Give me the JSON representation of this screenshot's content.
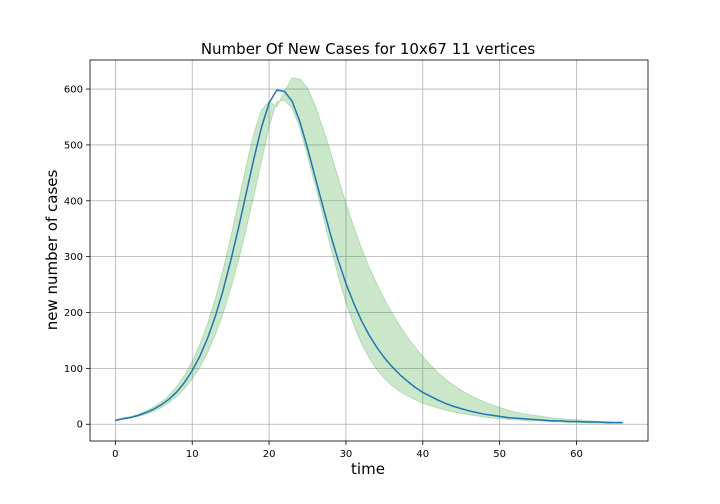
{
  "chart_data": {
    "type": "line",
    "title": "Number Of New Cases for 10x67 11 vertices",
    "xlabel": "time",
    "ylabel": "new number of cases",
    "xlim": [
      -3.3,
      69.3
    ],
    "ylim": [
      -30,
      652
    ],
    "xticks": [
      0,
      10,
      20,
      30,
      40,
      50,
      60
    ],
    "yticks": [
      0,
      100,
      200,
      300,
      400,
      500,
      600
    ],
    "grid": true,
    "colors": {
      "line": "#1f77b4",
      "band": "#2ca02c"
    },
    "series": [
      {
        "x": [
          0,
          1,
          2,
          3,
          4,
          5,
          6,
          7,
          8,
          9,
          10,
          11,
          12,
          13,
          14,
          15,
          16,
          17,
          18,
          19,
          20,
          21,
          22,
          23,
          24,
          25,
          26,
          27,
          28,
          29,
          30,
          31,
          32,
          33,
          34,
          35,
          36,
          37,
          38,
          39,
          40,
          41,
          42,
          43,
          44,
          45,
          46,
          47,
          48,
          49,
          50,
          51,
          52,
          53,
          54,
          55,
          56,
          57,
          58,
          59,
          60,
          61,
          62,
          63,
          64,
          65,
          66
        ],
        "y": [
          7,
          10,
          12,
          16,
          21,
          27,
          35,
          45,
          58,
          75,
          96,
          122,
          154,
          193,
          239,
          292,
          350,
          412,
          474,
          531,
          575,
          598,
          596,
          578,
          542,
          494,
          442,
          390,
          339,
          293,
          252,
          217,
          186,
          160,
          138,
          119,
          103,
          89,
          77,
          66,
          57,
          50,
          43,
          37,
          32,
          28,
          24,
          21,
          18,
          16,
          14,
          12,
          11,
          10,
          9,
          8,
          7,
          6,
          6,
          5,
          5,
          4,
          4,
          4,
          3,
          3,
          3
        ],
        "band_upper": [
          8,
          11,
          14,
          18,
          24,
          31,
          40,
          52,
          68,
          88,
          113,
          143,
          180,
          224,
          276,
          334,
          397,
          461,
          520,
          562,
          578,
          568,
          596,
          620,
          618,
          602,
          570,
          530,
          487,
          441,
          396,
          354,
          316,
          282,
          252,
          224,
          199,
          176,
          156,
          138,
          121,
          106,
          92,
          80,
          70,
          61,
          53,
          46,
          40,
          35,
          30,
          26,
          22,
          19,
          17,
          15,
          13,
          11,
          10,
          9,
          8,
          7,
          6,
          5,
          5,
          4,
          4
        ],
        "band_lower": [
          6,
          9,
          11,
          14,
          18,
          23,
          30,
          39,
          50,
          64,
          81,
          102,
          128,
          160,
          198,
          242,
          292,
          348,
          408,
          470,
          532,
          578,
          580,
          566,
          530,
          480,
          428,
          374,
          318,
          265,
          218,
          178,
          145,
          119,
          98,
          82,
          69,
          59,
          51,
          44,
          38,
          33,
          29,
          25,
          22,
          19,
          17,
          15,
          13,
          11,
          10,
          9,
          8,
          7,
          6,
          6,
          5,
          4,
          4,
          3,
          3,
          3,
          2,
          2,
          2,
          2,
          2
        ]
      }
    ]
  }
}
